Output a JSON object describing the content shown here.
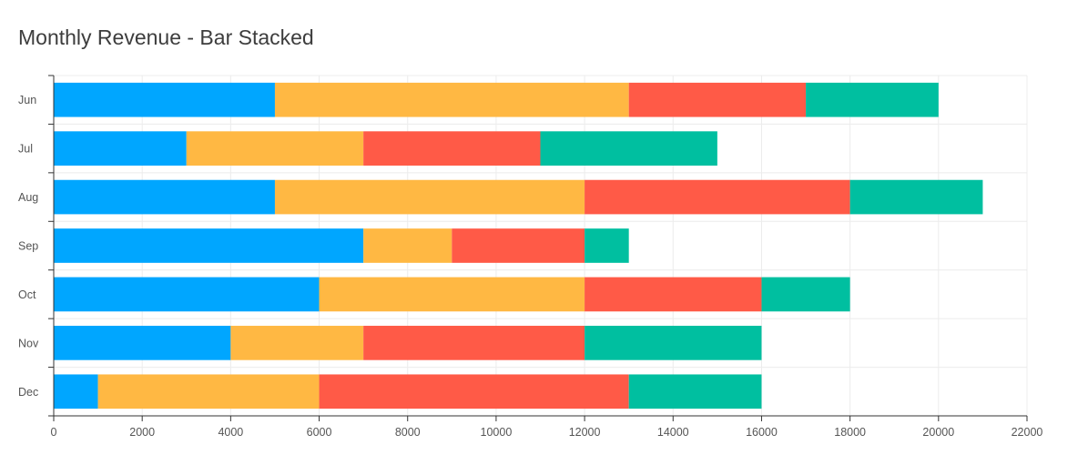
{
  "chart_data": {
    "type": "bar",
    "orientation": "horizontal",
    "stacked": true,
    "title": "Monthly Revenue - Bar Stacked",
    "xlabel": "",
    "ylabel": "",
    "categories": [
      "Jun",
      "Jul",
      "Aug",
      "Sep",
      "Oct",
      "Nov",
      "Dec"
    ],
    "series": [
      {
        "values": [
          5000,
          3000,
          5000,
          7000,
          6000,
          4000,
          1000
        ],
        "color": "#00A6FF"
      },
      {
        "values": [
          8000,
          4000,
          7000,
          2000,
          6000,
          3000,
          5000
        ],
        "color": "#FFB843"
      },
      {
        "values": [
          4000,
          4000,
          6000,
          3000,
          4000,
          5000,
          7000
        ],
        "color": "#FF5A47"
      },
      {
        "values": [
          3000,
          4000,
          3000,
          1000,
          2000,
          4000,
          3000
        ],
        "color": "#00BFA0"
      }
    ],
    "xlim": [
      0,
      22000
    ],
    "xticks": [
      0,
      2000,
      4000,
      6000,
      8000,
      10000,
      12000,
      14000,
      16000,
      18000,
      20000,
      22000
    ],
    "grid": true,
    "legend": "none"
  }
}
